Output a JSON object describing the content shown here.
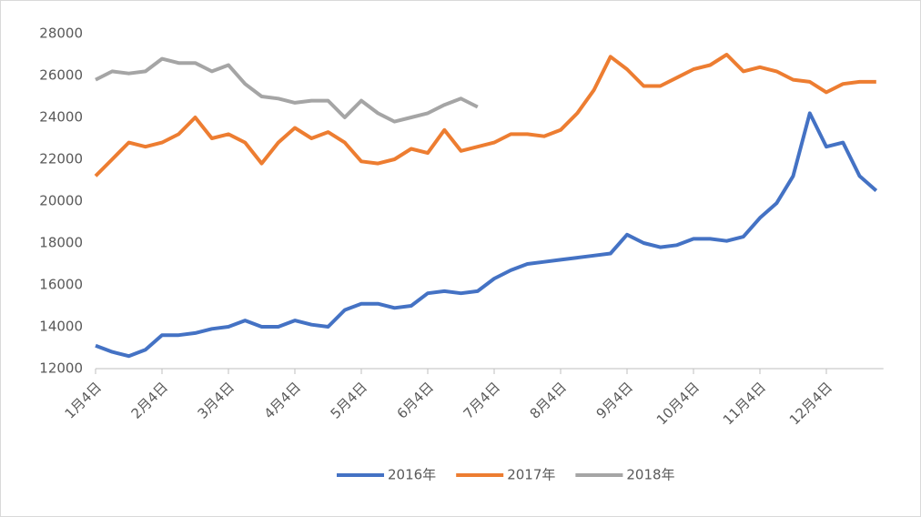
{
  "chart_data": {
    "type": "line",
    "x": [
      "1月4日",
      "1月11日",
      "1月18日",
      "1月25日",
      "2月4日",
      "2月11日",
      "2月18日",
      "2月25日",
      "3月4日",
      "3月11日",
      "3月18日",
      "3月25日",
      "4月4日",
      "4月11日",
      "4月18日",
      "4月25日",
      "5月4日",
      "5月11日",
      "5月18日",
      "5月25日",
      "6月4日",
      "6月11日",
      "6月18日",
      "6月25日",
      "7月4日",
      "7月11日",
      "7月18日",
      "7月25日",
      "8月4日",
      "8月11日",
      "8月18日",
      "8月25日",
      "9月4日",
      "9月11日",
      "9月18日",
      "9月25日",
      "10月4日",
      "10月11日",
      "10月18日",
      "10月25日",
      "11月4日",
      "11月11日",
      "11月18日",
      "11月25日",
      "12月4日",
      "12月11日",
      "12月18日",
      "12月25日"
    ],
    "xticks": [
      "1月4日",
      "2月4日",
      "3月4日",
      "4月4日",
      "5月4日",
      "6月4日",
      "7月4日",
      "8月4日",
      "9月4日",
      "10月4日",
      "11月4日",
      "12月4日"
    ],
    "series": [
      {
        "name": "2016年",
        "color": "#4472c4",
        "values": [
          13100,
          12800,
          12600,
          12900,
          13600,
          13600,
          13700,
          13900,
          14000,
          14300,
          14000,
          14000,
          14300,
          14100,
          14000,
          14800,
          15100,
          15100,
          14900,
          15000,
          15600,
          15700,
          15600,
          15700,
          16300,
          16700,
          17000,
          17100,
          17200,
          17300,
          17400,
          17500,
          18400,
          18000,
          17800,
          17900,
          18200,
          18200,
          18100,
          18300,
          19200,
          19900,
          21200,
          24200,
          22600,
          22800,
          21200,
          20500
        ]
      },
      {
        "name": "2017年",
        "color": "#ed7d31",
        "values": [
          21200,
          22000,
          22800,
          22600,
          22800,
          23200,
          24000,
          23000,
          23200,
          22800,
          21800,
          22800,
          23500,
          23000,
          23300,
          22800,
          21900,
          21800,
          22000,
          22500,
          22300,
          23400,
          22400,
          22600,
          22800,
          23200,
          23200,
          23100,
          23400,
          24200,
          25300,
          26900,
          26300,
          25500,
          25500,
          25900,
          26300,
          26500,
          27000,
          26200,
          26400,
          26200,
          25800,
          25700,
          25200,
          25600,
          25700,
          25700
        ]
      },
      {
        "name": "2018年",
        "color": "#a5a5a5",
        "values": [
          25800,
          26200,
          26100,
          26200,
          26800,
          26600,
          26600,
          26200,
          26500,
          25600,
          25000,
          24900,
          24700,
          24800,
          24800,
          24000,
          24800,
          24200,
          23800,
          24000,
          24200,
          24600,
          24900,
          24500,
          null,
          null,
          null,
          null,
          null,
          null,
          null,
          null,
          null,
          null,
          null,
          null,
          null,
          null,
          null,
          null,
          null,
          null,
          null,
          null,
          null,
          null,
          null,
          null
        ]
      }
    ],
    "ylim": [
      12000,
      28000
    ],
    "yticks": [
      12000,
      14000,
      16000,
      18000,
      20000,
      22000,
      24000,
      26000,
      28000
    ],
    "legend": "bottom"
  }
}
